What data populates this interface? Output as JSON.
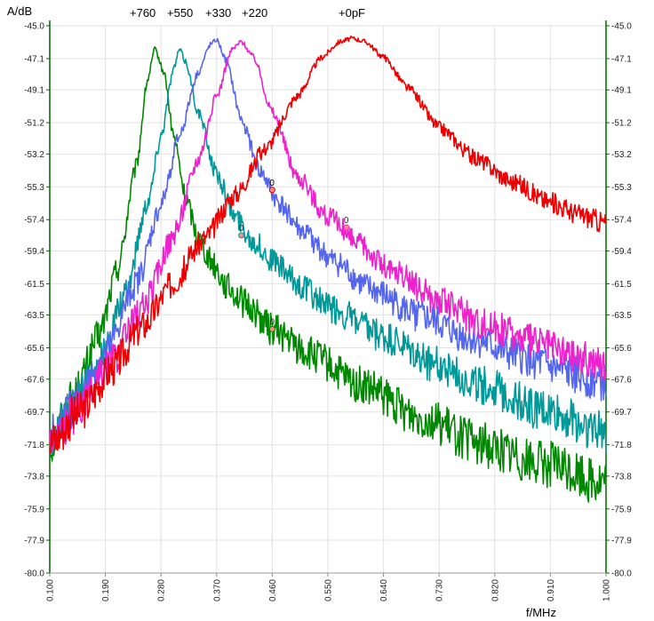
{
  "chart_data": {
    "type": "line",
    "xlabel": "f/MHz",
    "ylabel": "A/dB",
    "xlim": [
      0.1,
      1.0
    ],
    "ylim": [
      -80.0,
      -45.0
    ],
    "x_ticks": [
      "0.100",
      "0.190",
      "0.280",
      "0.370",
      "0.460",
      "0.550",
      "0.640",
      "0.730",
      "0.820",
      "0.910",
      "1.000"
    ],
    "y_ticks": [
      "-45.0",
      "-47.1",
      "-49.1",
      "-51.2",
      "-53.2",
      "-55.3",
      "-57.4",
      "-59.4",
      "-61.5",
      "-63.5",
      "-65.6",
      "-67.6",
      "-69.7",
      "-71.8",
      "-73.8",
      "-75.9",
      "-77.9",
      "-80.0"
    ],
    "grid": true,
    "series_labels": [
      "+760",
      "+550",
      "+330",
      "+220",
      "+0pF"
    ],
    "series": [
      {
        "name": "+760",
        "color": "#008800",
        "x": [
          0.1,
          0.14,
          0.18,
          0.21,
          0.24,
          0.258,
          0.27,
          0.285,
          0.3,
          0.32,
          0.34,
          0.36,
          0.39,
          0.42,
          0.46,
          0.52,
          0.6,
          0.7,
          0.8,
          0.9,
          1.0
        ],
        "y": [
          -71.8,
          -68.6,
          -64.8,
          -60.5,
          -54.0,
          -48.5,
          -46.5,
          -48.0,
          -52.0,
          -56.0,
          -58.5,
          -60.0,
          -61.8,
          -62.9,
          -64.4,
          -66.0,
          -68.0,
          -70.0,
          -71.8,
          -73.0,
          -74.2
        ]
      },
      {
        "name": "+550",
        "color": "#009999",
        "x": [
          0.1,
          0.14,
          0.18,
          0.22,
          0.26,
          0.28,
          0.3,
          0.31,
          0.32,
          0.34,
          0.37,
          0.4,
          0.43,
          0.46,
          0.5,
          0.56,
          0.64,
          0.72,
          0.8,
          0.9,
          1.0
        ],
        "y": [
          -71.5,
          -69.2,
          -66.5,
          -62.5,
          -56.0,
          -52.0,
          -47.8,
          -46.5,
          -47.3,
          -50.5,
          -54.5,
          -57.2,
          -58.8,
          -60.0,
          -61.5,
          -63.2,
          -65.0,
          -66.6,
          -68.0,
          -69.6,
          -71.0
        ]
      },
      {
        "name": "+330",
        "color": "#5566ee",
        "x": [
          0.1,
          0.14,
          0.19,
          0.24,
          0.28,
          0.31,
          0.34,
          0.36,
          0.37,
          0.385,
          0.41,
          0.44,
          0.47,
          0.51,
          0.56,
          0.62,
          0.7,
          0.78,
          0.86,
          0.94,
          1.0
        ],
        "y": [
          -71.3,
          -69.3,
          -66.0,
          -61.5,
          -56.5,
          -52.0,
          -48.0,
          -46.2,
          -45.9,
          -47.2,
          -51.0,
          -54.3,
          -56.3,
          -58.2,
          -60.1,
          -61.9,
          -63.6,
          -65.0,
          -66.2,
          -67.2,
          -67.9
        ]
      },
      {
        "name": "+220",
        "color": "#ee22cc",
        "x": [
          0.1,
          0.15,
          0.2,
          0.25,
          0.3,
          0.34,
          0.37,
          0.395,
          0.41,
          0.43,
          0.46,
          0.5,
          0.55,
          0.6,
          0.66,
          0.73,
          0.8,
          0.88,
          0.96,
          1.0
        ],
        "y": [
          -71.5,
          -69.5,
          -66.5,
          -63.0,
          -58.5,
          -53.5,
          -49.5,
          -46.5,
          -46.0,
          -47.0,
          -50.5,
          -54.6,
          -57.2,
          -59.0,
          -60.9,
          -62.6,
          -64.0,
          -65.2,
          -66.2,
          -66.7
        ]
      },
      {
        "name": "+0pF",
        "color": "#ee0000",
        "x": [
          0.1,
          0.15,
          0.2,
          0.25,
          0.3,
          0.35,
          0.4,
          0.45,
          0.5,
          0.54,
          0.57,
          0.59,
          0.61,
          0.64,
          0.68,
          0.73,
          0.79,
          0.85,
          0.91,
          0.96,
          1.0
        ],
        "y": [
          -71.6,
          -69.6,
          -66.9,
          -64.2,
          -61.4,
          -58.6,
          -55.8,
          -52.8,
          -49.5,
          -47.0,
          -46.0,
          -45.8,
          -46.0,
          -47.0,
          -49.0,
          -51.5,
          -53.5,
          -55.0,
          -56.3,
          -57.1,
          -57.6
        ]
      }
    ],
    "markers": [
      {
        "series": "+760",
        "x": 0.46,
        "y": -64.4,
        "label": "0"
      },
      {
        "series": "+550",
        "x": 0.41,
        "y": -58.4,
        "label": "0"
      },
      {
        "series": "+330",
        "x": 0.46,
        "y": -55.5,
        "label": "0"
      },
      {
        "series": "+220",
        "x": 0.58,
        "y": -57.9,
        "label": "0"
      },
      {
        "series": "+0pF",
        "x": 0.46,
        "y": -55.5,
        "label": "0"
      }
    ],
    "axis_color": "#006600"
  }
}
